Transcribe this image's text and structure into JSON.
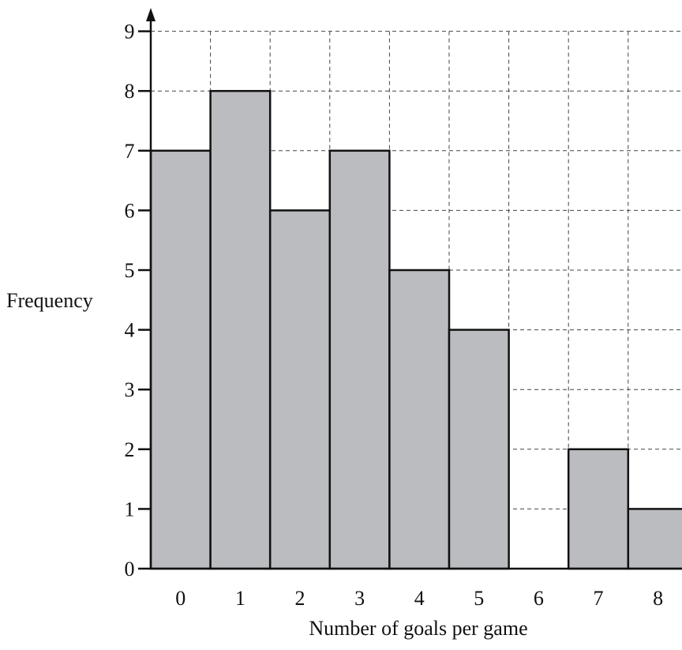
{
  "chart_data": {
    "type": "bar",
    "title": "",
    "xlabel": "Number of goals per game",
    "ylabel": "Frequency",
    "categories": [
      "0",
      "1",
      "2",
      "3",
      "4",
      "5",
      "6",
      "7",
      "8"
    ],
    "values": [
      7,
      8,
      6,
      7,
      5,
      4,
      0,
      2,
      1
    ],
    "ylim": [
      0,
      9
    ],
    "yticks": [
      "0",
      "1",
      "2",
      "3",
      "4",
      "5",
      "6",
      "7",
      "8",
      "9"
    ],
    "grid": true,
    "bar_color": "#bbbcc0"
  }
}
